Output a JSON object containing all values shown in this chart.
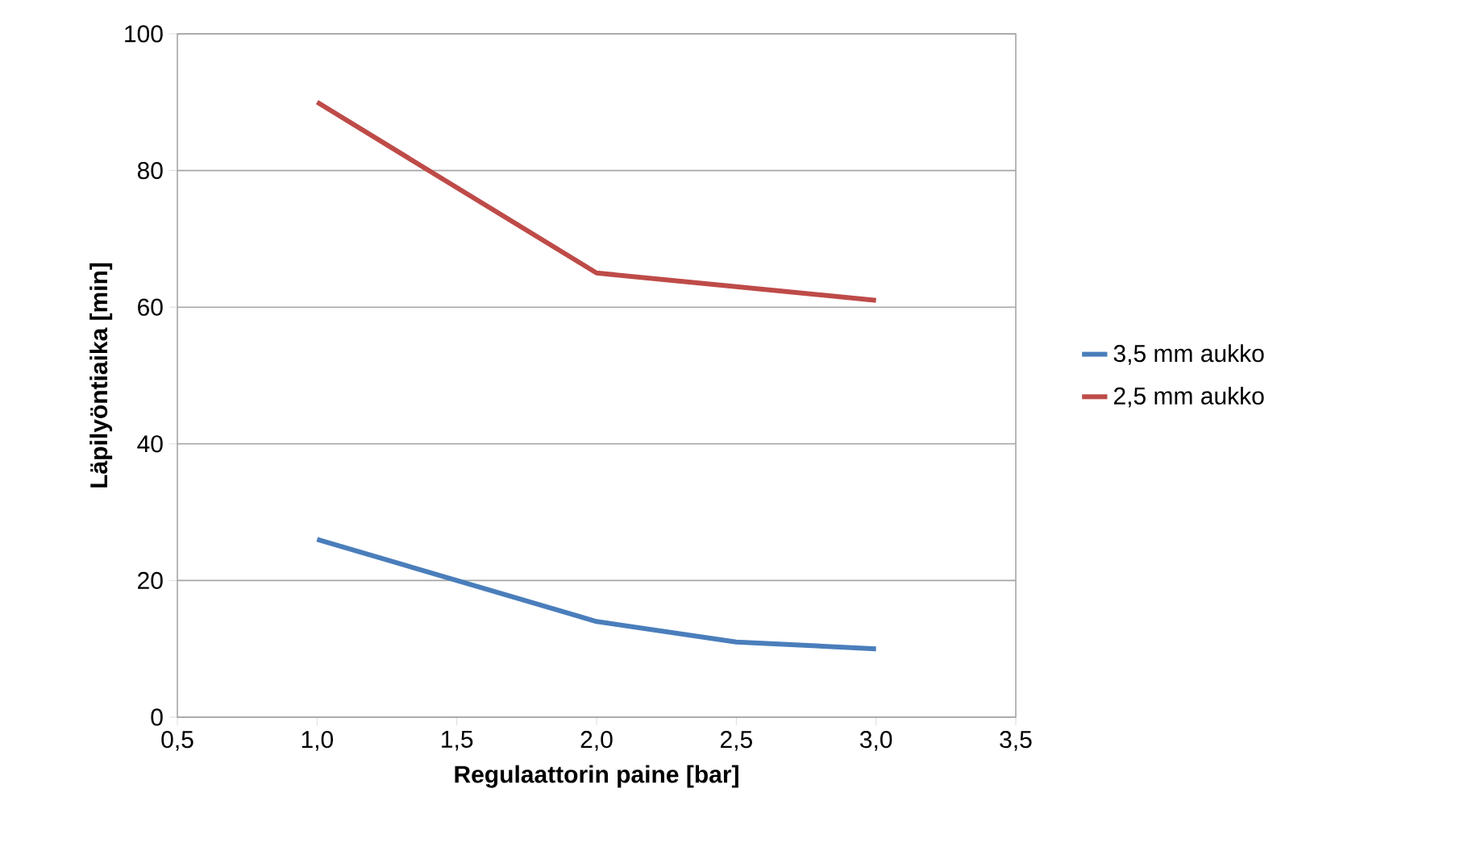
{
  "chart_data": {
    "type": "line",
    "xlabel": "Regulaattorin paine [bar]",
    "ylabel": "Läpilyöntiaika [min]",
    "xlim": [
      0.5,
      3.5
    ],
    "xticks": [
      {
        "value": 0.5,
        "label": "0,5"
      },
      {
        "value": 1.0,
        "label": "1,0"
      },
      {
        "value": 1.5,
        "label": "1,5"
      },
      {
        "value": 2.0,
        "label": "2,0"
      },
      {
        "value": 2.5,
        "label": "2,5"
      },
      {
        "value": 3.0,
        "label": "3,0"
      },
      {
        "value": 3.5,
        "label": "3,5"
      }
    ],
    "ylim": [
      0,
      100
    ],
    "yticks": [
      0,
      20,
      40,
      60,
      80,
      100
    ],
    "grid": "y",
    "legend": "right",
    "marker": "none",
    "line_style": "solid",
    "series": [
      {
        "name": "3,5 mm aukko",
        "color": "#4a7ebb",
        "x": [
          1.0,
          2.0,
          2.5,
          3.0
        ],
        "values": [
          26,
          14,
          11,
          10
        ]
      },
      {
        "name": "2,5 mm aukko",
        "color": "#be4b48",
        "x": [
          1.0,
          2.0,
          2.5,
          3.0
        ],
        "values": [
          90,
          65,
          63,
          61
        ]
      }
    ]
  }
}
